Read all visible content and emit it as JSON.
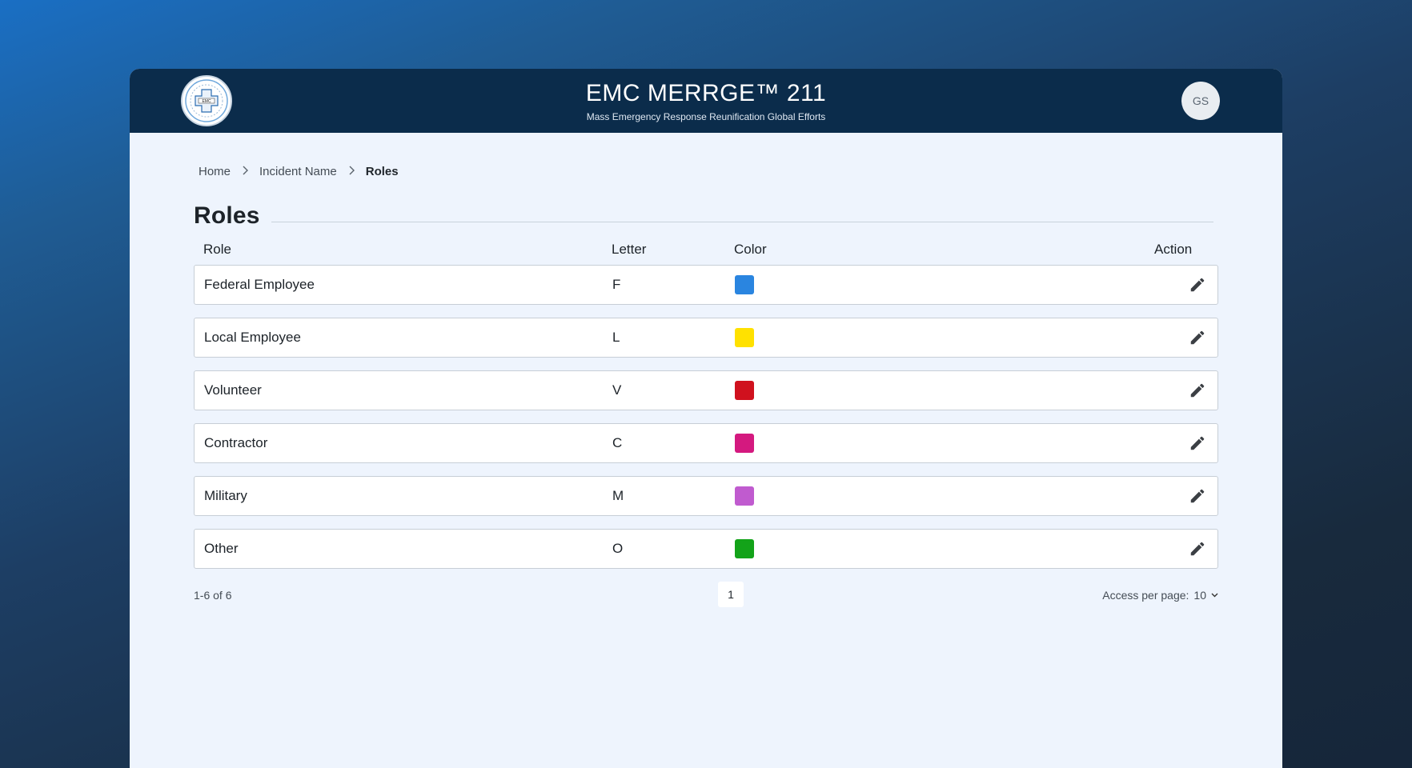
{
  "header": {
    "title": "EMC MERRGE™ 211",
    "subtitle": "Mass Emergency Response Reunification Global Efforts",
    "logo_text": "EMC",
    "avatar_initials": "GS"
  },
  "breadcrumb": {
    "items": [
      "Home",
      "Incident Name"
    ],
    "current": "Roles"
  },
  "page": {
    "title": "Roles"
  },
  "table": {
    "headers": {
      "role": "Role",
      "letter": "Letter",
      "color": "Color",
      "action": "Action"
    },
    "rows": [
      {
        "role": "Federal Employee",
        "letter": "F",
        "color": "#2a85e0"
      },
      {
        "role": "Local Employee",
        "letter": "L",
        "color": "#ffe100"
      },
      {
        "role": "Volunteer",
        "letter": "V",
        "color": "#d0111e"
      },
      {
        "role": "Contractor",
        "letter": "C",
        "color": "#d4197f"
      },
      {
        "role": "Military",
        "letter": "M",
        "color": "#c05bcf"
      },
      {
        "role": "Other",
        "letter": "O",
        "color": "#13a319"
      }
    ]
  },
  "pagination": {
    "range_text": "1-6 of 6",
    "current_page": "1",
    "per_page_label": "Access per page:",
    "per_page_value": "10"
  },
  "icons": {
    "edit": "pencil-icon",
    "chevron": "chevron-down-icon",
    "breadcrumb_separator": "chevron-right-icon"
  }
}
